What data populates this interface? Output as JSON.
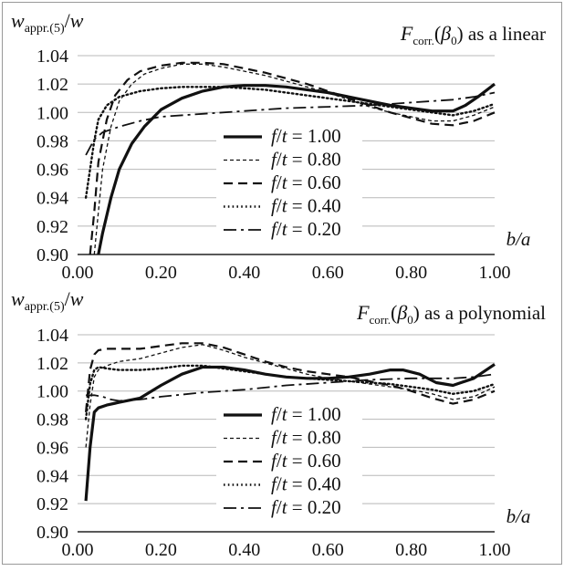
{
  "chart_data": [
    {
      "type": "line",
      "title": "Fcorr.(β0) as a linear",
      "title_parts": {
        "F": "F",
        "sub": "corr.",
        "open": "(",
        "beta": "β",
        "beta_sub": "0",
        "rest": ") as a linear"
      },
      "ylabel": "wappr.(5)/w",
      "ylabel_parts": {
        "w": "w",
        "sub": "appr.(5)",
        "slash": "/",
        "w2": "w"
      },
      "xlabel": "b/a",
      "xlim": [
        0,
        1
      ],
      "ylim": [
        0.9,
        1.04
      ],
      "xticks": [
        "0.00",
        "0.20",
        "0.40",
        "0.60",
        "0.80",
        "1.00"
      ],
      "yticks": [
        "0.90",
        "0.92",
        "0.94",
        "0.96",
        "0.98",
        "1.00",
        "1.02",
        "1.04"
      ],
      "grid": "horizontal",
      "legend_position": "center-left",
      "series": [
        {
          "name": "f/t = 1.00",
          "label_parts": [
            "f",
            "/",
            "t",
            " = 1.00"
          ],
          "style": "solid",
          "x": [
            0.05,
            0.06,
            0.08,
            0.1,
            0.13,
            0.16,
            0.2,
            0.25,
            0.3,
            0.35,
            0.4,
            0.45,
            0.5,
            0.55,
            0.6,
            0.65,
            0.7,
            0.75,
            0.8,
            0.85,
            0.9,
            0.93,
            0.96,
            1.0
          ],
          "y": [
            0.9,
            0.915,
            0.94,
            0.96,
            0.978,
            0.99,
            1.002,
            1.01,
            1.015,
            1.018,
            1.019,
            1.019,
            1.018,
            1.016,
            1.014,
            1.011,
            1.008,
            1.005,
            1.003,
            1.001,
            1.001,
            1.005,
            1.011,
            1.02
          ]
        },
        {
          "name": "f/t = 0.80",
          "label_parts": [
            "f",
            "/",
            "t",
            " = 0.80"
          ],
          "style": "thin-dashed",
          "x": [
            0.04,
            0.05,
            0.06,
            0.08,
            0.1,
            0.13,
            0.16,
            0.2,
            0.25,
            0.3,
            0.35,
            0.4,
            0.45,
            0.5,
            0.55,
            0.6,
            0.65,
            0.7,
            0.75,
            0.8,
            0.85,
            0.9,
            0.95,
            1.0
          ],
          "y": [
            0.9,
            0.93,
            0.96,
            0.99,
            1.008,
            1.02,
            1.027,
            1.031,
            1.034,
            1.034,
            1.032,
            1.029,
            1.026,
            1.022,
            1.018,
            1.014,
            1.009,
            1.004,
            1.0,
            0.997,
            0.994,
            0.994,
            0.998,
            1.004
          ]
        },
        {
          "name": "f/t = 0.60",
          "label_parts": [
            "f",
            "/",
            "t",
            " = 0.60"
          ],
          "style": "dashed",
          "x": [
            0.03,
            0.04,
            0.05,
            0.07,
            0.09,
            0.12,
            0.15,
            0.2,
            0.25,
            0.3,
            0.35,
            0.4,
            0.45,
            0.5,
            0.55,
            0.6,
            0.65,
            0.7,
            0.75,
            0.8,
            0.85,
            0.9,
            0.95,
            1.0
          ],
          "y": [
            0.9,
            0.93,
            0.965,
            0.995,
            1.012,
            1.023,
            1.029,
            1.033,
            1.035,
            1.035,
            1.034,
            1.031,
            1.028,
            1.024,
            1.02,
            1.015,
            1.01,
            1.005,
            1.0,
            0.996,
            0.992,
            0.991,
            0.994,
            1.0
          ]
        },
        {
          "name": "f/t = 0.40",
          "label_parts": [
            "f",
            "/",
            "t",
            " = 0.40"
          ],
          "style": "dotted",
          "x": [
            0.02,
            0.03,
            0.04,
            0.05,
            0.07,
            0.1,
            0.15,
            0.2,
            0.25,
            0.3,
            0.35,
            0.4,
            0.45,
            0.5,
            0.55,
            0.6,
            0.65,
            0.7,
            0.75,
            0.8,
            0.85,
            0.9,
            0.95,
            1.0
          ],
          "y": [
            0.94,
            0.96,
            0.98,
            0.995,
            1.005,
            1.011,
            1.015,
            1.017,
            1.018,
            1.018,
            1.018,
            1.017,
            1.016,
            1.014,
            1.012,
            1.01,
            1.008,
            1.006,
            1.004,
            1.002,
            1.0,
            0.998,
            1.001,
            1.006
          ]
        },
        {
          "name": "f/t = 0.20",
          "label_parts": [
            "f",
            "/",
            "t",
            " = 0.20"
          ],
          "style": "dash-dot",
          "x": [
            0.02,
            0.04,
            0.06,
            0.1,
            0.15,
            0.2,
            0.3,
            0.4,
            0.5,
            0.6,
            0.7,
            0.8,
            0.9,
            0.95,
            1.0
          ],
          "y": [
            0.97,
            0.981,
            0.986,
            0.99,
            0.994,
            0.997,
            0.999,
            1.001,
            1.003,
            1.004,
            1.005,
            1.007,
            1.009,
            1.011,
            1.014
          ]
        }
      ]
    },
    {
      "type": "line",
      "title": "Fcorr.(β0) as a polynomial",
      "title_parts": {
        "F": "F",
        "sub": "corr.",
        "open": "(",
        "beta": "β",
        "beta_sub": "0",
        "rest": ") as a polynomial"
      },
      "ylabel": "wappr.(5)/w",
      "ylabel_parts": {
        "w": "w",
        "sub": "appr.(5)",
        "slash": "/",
        "w2": "w"
      },
      "xlabel": "b/a",
      "xlim": [
        0,
        1
      ],
      "ylim": [
        0.9,
        1.04
      ],
      "xticks": [
        "0.00",
        "0.20",
        "0.40",
        "0.60",
        "0.80",
        "1.00"
      ],
      "yticks": [
        "0.90",
        "0.92",
        "0.94",
        "0.96",
        "0.98",
        "1.00",
        "1.02",
        "1.04"
      ],
      "grid": "horizontal",
      "legend_position": "center-left",
      "series": [
        {
          "name": "f/t = 1.00",
          "label_parts": [
            "f",
            "/",
            "t",
            " = 1.00"
          ],
          "style": "solid",
          "x": [
            0.02,
            0.03,
            0.04,
            0.05,
            0.07,
            0.1,
            0.15,
            0.2,
            0.25,
            0.3,
            0.35,
            0.4,
            0.45,
            0.5,
            0.55,
            0.6,
            0.65,
            0.7,
            0.75,
            0.78,
            0.82,
            0.86,
            0.9,
            0.95,
            1.0
          ],
          "y": [
            0.922,
            0.96,
            0.985,
            0.988,
            0.99,
            0.992,
            0.995,
            1.004,
            1.012,
            1.017,
            1.017,
            1.015,
            1.012,
            1.01,
            1.009,
            1.009,
            1.01,
            1.012,
            1.015,
            1.015,
            1.012,
            1.006,
            1.004,
            1.009,
            1.019
          ]
        },
        {
          "name": "f/t = 0.80",
          "label_parts": [
            "f",
            "/",
            "t",
            " = 0.80"
          ],
          "style": "thin-dashed",
          "x": [
            0.02,
            0.03,
            0.04,
            0.05,
            0.07,
            0.1,
            0.15,
            0.2,
            0.25,
            0.3,
            0.35,
            0.4,
            0.45,
            0.5,
            0.55,
            0.6,
            0.65,
            0.7,
            0.75,
            0.8,
            0.85,
            0.9,
            0.95,
            1.0
          ],
          "y": [
            0.96,
            0.99,
            1.01,
            1.015,
            1.018,
            1.021,
            1.023,
            1.027,
            1.031,
            1.033,
            1.029,
            1.024,
            1.02,
            1.016,
            1.012,
            1.009,
            1.007,
            1.005,
            1.003,
            1.001,
            0.998,
            0.994,
            0.996,
            1.003
          ]
        },
        {
          "name": "f/t = 0.60",
          "label_parts": [
            "f",
            "/",
            "t",
            " = 0.60"
          ],
          "style": "dashed",
          "x": [
            0.02,
            0.03,
            0.04,
            0.05,
            0.07,
            0.1,
            0.15,
            0.2,
            0.25,
            0.3,
            0.35,
            0.4,
            0.45,
            0.5,
            0.55,
            0.6,
            0.65,
            0.7,
            0.75,
            0.8,
            0.85,
            0.9,
            0.95,
            1.0
          ],
          "y": [
            0.985,
            1.015,
            1.026,
            1.029,
            1.03,
            1.03,
            1.03,
            1.032,
            1.034,
            1.034,
            1.031,
            1.026,
            1.021,
            1.017,
            1.014,
            1.012,
            1.01,
            1.007,
            1.004,
            1.0,
            0.995,
            0.991,
            0.994,
            1.0
          ]
        },
        {
          "name": "f/t = 0.40",
          "label_parts": [
            "f",
            "/",
            "t",
            " = 0.40"
          ],
          "style": "dotted",
          "x": [
            0.02,
            0.03,
            0.04,
            0.05,
            0.07,
            0.1,
            0.15,
            0.2,
            0.25,
            0.3,
            0.35,
            0.4,
            0.45,
            0.5,
            0.55,
            0.6,
            0.65,
            0.7,
            0.75,
            0.8,
            0.85,
            0.9,
            0.95,
            1.0
          ],
          "y": [
            0.98,
            1.005,
            1.015,
            1.017,
            1.016,
            1.015,
            1.015,
            1.016,
            1.018,
            1.018,
            1.016,
            1.014,
            1.012,
            1.01,
            1.009,
            1.008,
            1.007,
            1.006,
            1.005,
            1.003,
            1.001,
            0.998,
            1.0,
            1.005
          ]
        },
        {
          "name": "f/t = 0.20",
          "label_parts": [
            "f",
            "/",
            "t",
            " = 0.20"
          ],
          "style": "dash-dot",
          "x": [
            0.02,
            0.04,
            0.06,
            0.08,
            0.1,
            0.15,
            0.2,
            0.3,
            0.4,
            0.5,
            0.6,
            0.7,
            0.8,
            0.9,
            0.95,
            1.0
          ],
          "y": [
            0.997,
            0.997,
            0.996,
            0.994,
            0.993,
            0.994,
            0.996,
            0.999,
            1.001,
            1.004,
            1.006,
            1.008,
            1.009,
            1.009,
            1.01,
            1.012
          ]
        }
      ]
    }
  ]
}
